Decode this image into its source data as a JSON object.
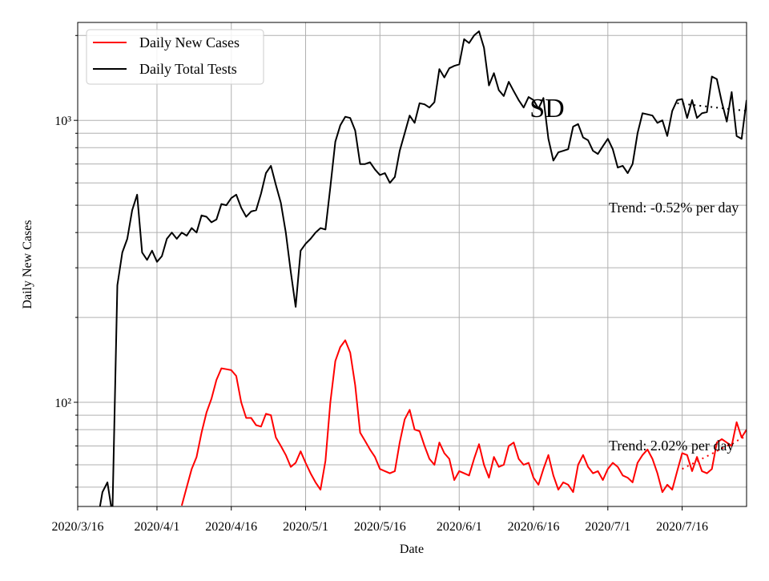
{
  "chart_data": {
    "type": "line",
    "xlabel": "Date",
    "ylabel": "Daily New Cases",
    "log_y": true,
    "grid": true,
    "legend": "upper left",
    "xlim": [
      "2020/3/16",
      "2020/7/29"
    ],
    "xticks": [
      "2020/3/16",
      "2020/4/1",
      "2020/4/16",
      "2020/5/1",
      "2020/5/16",
      "2020/6/1",
      "2020/6/16",
      "2020/7/1",
      "2020/7/16"
    ],
    "ylim": [
      42.7,
      2225
    ],
    "yticks": [
      {
        "value": 100,
        "label": "10²"
      },
      {
        "value": 1000,
        "label": "10³"
      }
    ],
    "yminor_ticks": [
      50,
      60,
      70,
      80,
      90,
      200,
      300,
      400,
      500,
      600,
      700,
      800,
      900,
      2000
    ],
    "x": [
      "2020/3/20",
      "2020/3/21",
      "2020/3/22",
      "2020/3/23",
      "2020/3/24",
      "2020/3/25",
      "2020/3/26",
      "2020/3/27",
      "2020/3/28",
      "2020/3/29",
      "2020/3/30",
      "2020/3/31",
      "2020/4/1",
      "2020/4/2",
      "2020/4/3",
      "2020/4/4",
      "2020/4/5",
      "2020/4/6",
      "2020/4/7",
      "2020/4/8",
      "2020/4/9",
      "2020/4/10",
      "2020/4/11",
      "2020/4/12",
      "2020/4/13",
      "2020/4/14",
      "2020/4/15",
      "2020/4/16",
      "2020/4/17",
      "2020/4/18",
      "2020/4/19",
      "2020/4/20",
      "2020/4/21",
      "2020/4/22",
      "2020/4/23",
      "2020/4/24",
      "2020/4/25",
      "2020/4/26",
      "2020/4/27",
      "2020/4/28",
      "2020/4/29",
      "2020/4/30",
      "2020/5/1",
      "2020/5/2",
      "2020/5/3",
      "2020/5/4",
      "2020/5/5",
      "2020/5/6",
      "2020/5/7",
      "2020/5/8",
      "2020/5/9",
      "2020/5/10",
      "2020/5/11",
      "2020/5/12",
      "2020/5/13",
      "2020/5/14",
      "2020/5/15",
      "2020/5/16",
      "2020/5/17",
      "2020/5/18",
      "2020/5/19",
      "2020/5/20",
      "2020/5/21",
      "2020/5/22",
      "2020/5/23",
      "2020/5/24",
      "2020/5/25",
      "2020/5/26",
      "2020/5/27",
      "2020/5/28",
      "2020/5/29",
      "2020/5/30",
      "2020/5/31",
      "2020/6/1",
      "2020/6/2",
      "2020/6/3",
      "2020/6/4",
      "2020/6/5",
      "2020/6/6",
      "2020/6/7",
      "2020/6/8",
      "2020/6/9",
      "2020/6/10",
      "2020/6/11",
      "2020/6/12",
      "2020/6/13",
      "2020/6/14",
      "2020/6/15",
      "2020/6/16",
      "2020/6/17",
      "2020/6/18",
      "2020/6/19",
      "2020/6/20",
      "2020/6/21",
      "2020/6/22",
      "2020/6/23",
      "2020/6/24",
      "2020/6/25",
      "2020/6/26",
      "2020/6/27",
      "2020/6/28",
      "2020/6/29",
      "2020/6/30",
      "2020/7/1",
      "2020/7/2",
      "2020/7/3",
      "2020/7/4",
      "2020/7/5",
      "2020/7/6",
      "2020/7/7",
      "2020/7/8",
      "2020/7/9",
      "2020/7/10",
      "2020/7/11",
      "2020/7/12",
      "2020/7/13",
      "2020/7/14",
      "2020/7/15",
      "2020/7/16",
      "2020/7/17",
      "2020/7/18",
      "2020/7/19",
      "2020/7/20",
      "2020/7/21",
      "2020/7/22",
      "2020/7/23",
      "2020/7/24",
      "2020/7/25",
      "2020/7/26",
      "2020/7/27",
      "2020/7/28",
      "2020/7/29"
    ],
    "series": [
      {
        "name": "Daily New Cases",
        "color": "#ff0000",
        "values": [
          null,
          null,
          null,
          null,
          null,
          null,
          null,
          null,
          null,
          null,
          null,
          null,
          null,
          null,
          null,
          null,
          null,
          43,
          50,
          58,
          64,
          78,
          92,
          103,
          120,
          132,
          131,
          130,
          124,
          100,
          88,
          88,
          83,
          82,
          91,
          90,
          75,
          70,
          65,
          59,
          61,
          67,
          61,
          56,
          52,
          49,
          62,
          100,
          140,
          157,
          166,
          150,
          115,
          78,
          73,
          68,
          64,
          58,
          57,
          56,
          57,
          72,
          87,
          94,
          80,
          79,
          70,
          63,
          60,
          72,
          66,
          63,
          53,
          57,
          56,
          55,
          63,
          71,
          60,
          54,
          64,
          59,
          60,
          70,
          72,
          63,
          60,
          61,
          54,
          51,
          58,
          65,
          55,
          49,
          52,
          51,
          48,
          60,
          65,
          59,
          56,
          57,
          53,
          58,
          61,
          59,
          55,
          54,
          52,
          61,
          65,
          68,
          63,
          56,
          48,
          51,
          49,
          57,
          66,
          65,
          57,
          64,
          57,
          56,
          58,
          72,
          74,
          72,
          70,
          85,
          75,
          80
        ]
      },
      {
        "name": "Daily Total Tests",
        "color": "#000000",
        "values": [
          38,
          48,
          52,
          40,
          260,
          340,
          380,
          480,
          545,
          340,
          320,
          345,
          315,
          330,
          380,
          400,
          380,
          400,
          390,
          415,
          400,
          460,
          455,
          435,
          445,
          505,
          500,
          530,
          545,
          490,
          455,
          475,
          480,
          550,
          650,
          690,
          590,
          510,
          400,
          290,
          218,
          345,
          365,
          380,
          400,
          415,
          410,
          580,
          840,
          960,
          1030,
          1020,
          920,
          700,
          700,
          710,
          670,
          640,
          650,
          600,
          630,
          780,
          900,
          1040,
          980,
          1150,
          1140,
          1110,
          1160,
          1520,
          1420,
          1530,
          1560,
          1580,
          1940,
          1880,
          2000,
          2070,
          1810,
          1330,
          1470,
          1280,
          1220,
          1370,
          1270,
          1180,
          1110,
          1210,
          1180,
          1100,
          1200,
          860,
          720,
          770,
          780,
          790,
          950,
          970,
          870,
          850,
          780,
          760,
          810,
          860,
          790,
          680,
          690,
          650,
          700,
          900,
          1060,
          1050,
          1040,
          980,
          1000,
          880,
          1080,
          1180,
          1190,
          1020,
          1180,
          1020,
          1060,
          1070,
          1430,
          1400,
          1160,
          990,
          1260,
          880,
          860,
          1180
        ]
      }
    ],
    "trend_lines": [
      {
        "color": "#ff0000",
        "x": [
          "2020/7/16",
          "2020/7/29"
        ],
        "values": [
          58,
          76
        ]
      },
      {
        "color": "#000000",
        "x": [
          "2020/7/15",
          "2020/7/29"
        ],
        "values": [
          1150,
          1080
        ]
      }
    ],
    "annotations": [
      "SD",
      "Trend: -0.52% per day",
      "Trend: 2.02% per day"
    ]
  }
}
